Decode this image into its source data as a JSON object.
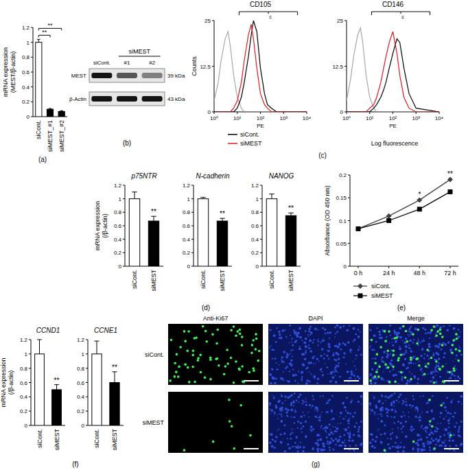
{
  "chart_data": [
    {
      "type": "bar",
      "panel": "(a)",
      "y_label": [
        "mRNA expression",
        "(MEST/β-actin)"
      ],
      "categories": [
        "siCont.",
        "siMEST_#1",
        "siMEST_#2"
      ],
      "values": [
        1,
        0.1,
        0.07
      ],
      "errors": [
        0.04,
        0.01,
        0.01
      ],
      "colors": [
        "#ffffff",
        "#000000",
        "#000000"
      ],
      "ylim": [
        0,
        1.2
      ],
      "yticks": [
        0,
        0.2,
        0.4,
        0.6,
        0.8,
        1,
        1.2
      ],
      "significance": [
        {
          "from": 0,
          "to": 1,
          "label": "**"
        },
        {
          "from": 0,
          "to": 2,
          "label": "**"
        }
      ]
    },
    {
      "type": "blot",
      "panel": "(b)",
      "group_label": "siMEST",
      "lanes": [
        "siCont.",
        "#1",
        "#2"
      ],
      "rows": [
        {
          "name": "MEST",
          "size": "39 kDa",
          "values": [
            1,
            0.7,
            0.5
          ]
        },
        {
          "name": "β-Actin",
          "size": "43 kDa",
          "values": [
            1,
            1,
            1
          ]
        }
      ]
    },
    {
      "type": "line",
      "panel": "(c)",
      "title": "CD105",
      "y_label": "Counts",
      "x_label": "PE",
      "log": "x",
      "x": [
        1,
        1.5,
        2,
        3,
        4,
        5,
        7,
        10,
        15,
        20,
        30,
        40,
        50,
        70,
        100,
        150,
        200,
        300,
        500,
        1000,
        10000
      ],
      "xlim": [
        1,
        10000
      ],
      "xticks": [
        {
          "value": 1,
          "label": "10⁰"
        },
        {
          "value": 10,
          "label": "10¹"
        },
        {
          "value": 100,
          "label": "10²"
        },
        {
          "value": 1000,
          "label": "10³"
        },
        {
          "value": 10000,
          "label": "10⁴"
        }
      ],
      "ylim": [
        0,
        25
      ],
      "yticks": [
        0,
        12.5,
        25
      ],
      "legend": "bottom-left",
      "gate": {
        "label": "c",
        "range": [
          12,
          4000
        ]
      },
      "series": [
        {
          "color": "#a6a6a6",
          "values": [
            3,
            8,
            14,
            20,
            22,
            18,
            10,
            4,
            1,
            0,
            0,
            0,
            0,
            0,
            0,
            0,
            0,
            0,
            0,
            0,
            0
          ]
        },
        {
          "name": "siCont.",
          "color": "#000000",
          "values": [
            0,
            0,
            0,
            0,
            0,
            0,
            0,
            1,
            4,
            8,
            15,
            21,
            25,
            22,
            12,
            5,
            2,
            1,
            0,
            0,
            0
          ]
        },
        {
          "name": "siMEST",
          "color": "#e8141c",
          "values": [
            0,
            0,
            0,
            0,
            0,
            0,
            1,
            3,
            8,
            14,
            21,
            24,
            20,
            12,
            5,
            2,
            1,
            0,
            0,
            0,
            0
          ]
        }
      ]
    },
    {
      "type": "line",
      "title": "CD146",
      "x_label": "PE",
      "axis_caption": "Log fluorescence",
      "log": "x",
      "x": [
        1,
        1.5,
        2,
        3,
        4,
        5,
        7,
        10,
        15,
        20,
        30,
        40,
        50,
        70,
        100,
        150,
        200,
        300,
        500,
        1000,
        10000
      ],
      "xlim": [
        1,
        10000
      ],
      "xticks": [
        {
          "value": 1,
          "label": "10⁰"
        },
        {
          "value": 10,
          "label": "10¹"
        },
        {
          "value": 100,
          "label": "10²"
        },
        {
          "value": 1000,
          "label": "10³"
        },
        {
          "value": 10000,
          "label": "10⁴"
        }
      ],
      "ylim": [
        0,
        25
      ],
      "yticks": [
        0,
        12.5,
        25
      ],
      "gate": {
        "label": "c",
        "range": [
          12,
          4000
        ]
      },
      "series": [
        {
          "color": "#a6a6a6",
          "values": [
            3,
            9,
            15,
            21,
            23,
            19,
            10,
            4,
            1,
            0,
            0,
            0,
            0,
            0,
            0,
            0,
            0,
            0,
            0,
            0,
            0
          ]
        },
        {
          "color": "#000000",
          "values": [
            0,
            0,
            0,
            0,
            0,
            0,
            0,
            0,
            1,
            2,
            4,
            6,
            8,
            12,
            16,
            20,
            19,
            12,
            5,
            1,
            0
          ]
        },
        {
          "color": "#e8141c",
          "values": [
            0,
            0,
            0,
            0,
            0,
            0,
            0,
            1,
            2,
            4,
            8,
            12,
            15,
            19,
            22,
            16,
            10,
            4,
            1,
            0,
            0
          ]
        }
      ]
    },
    {
      "type": "bar",
      "panel": "(d)",
      "title": "p75NTR",
      "y_label": [
        "mRNA expression",
        "(/β-actin)"
      ],
      "categories": [
        "siCont.",
        "siMEST"
      ],
      "values": [
        1,
        0.67
      ],
      "errors": [
        0.1,
        0.07
      ],
      "colors": [
        "#ffffff",
        "#000000"
      ],
      "ylim": [
        0,
        1.2
      ],
      "yticks": [
        0,
        0.2,
        0.4,
        0.6,
        0.8,
        1,
        1.2
      ],
      "significance": [
        {
          "at": 1,
          "label": "**"
        }
      ]
    },
    {
      "type": "bar",
      "title": "N-cadherin",
      "categories": [
        "siCont.",
        "siMEST"
      ],
      "values": [
        1,
        0.67
      ],
      "errors": [
        0.02,
        0.04
      ],
      "colors": [
        "#ffffff",
        "#000000"
      ],
      "ylim": [
        0,
        1.2
      ],
      "yticks": [
        0,
        0.2,
        0.4,
        0.6,
        0.8,
        1,
        1.2
      ],
      "significance": [
        {
          "at": 1,
          "label": "**"
        }
      ]
    },
    {
      "type": "bar",
      "title": "NANOG",
      "categories": [
        "siCont.",
        "siMEST"
      ],
      "values": [
        1,
        0.75
      ],
      "errors": [
        0.07,
        0.04
      ],
      "colors": [
        "#ffffff",
        "#000000"
      ],
      "ylim": [
        0,
        1.2
      ],
      "yticks": [
        0,
        0.2,
        0.4,
        0.6,
        0.8,
        1,
        1.2
      ],
      "significance": [
        {
          "at": 1,
          "label": "**"
        }
      ]
    },
    {
      "type": "line",
      "panel": "(e)",
      "y_label": "Absorbance (OD 450 nm)",
      "categories": [
        "0 h",
        "24 h",
        "48 h",
        "72 h"
      ],
      "ylim": [
        0,
        0.2
      ],
      "yticks": [
        0,
        0.05,
        0.1,
        0.15,
        0.2
      ],
      "legend": "bottom-left",
      "series": [
        {
          "name": "siCont.",
          "color": "#404040",
          "marker": "diamond",
          "values": [
            0.082,
            0.11,
            0.145,
            0.19
          ]
        },
        {
          "name": "siMEST",
          "color": "#000000",
          "marker": "square",
          "values": [
            0.082,
            0.1,
            0.125,
            0.163
          ]
        }
      ],
      "significance": [
        {
          "at": 2,
          "label": "*"
        },
        {
          "at": 3,
          "label": "**"
        }
      ]
    },
    {
      "type": "bar",
      "panel": "(f)",
      "title": "CCND1",
      "y_label": [
        "mRNA expression",
        "(/β-actin)"
      ],
      "categories": [
        "siCont.",
        "siMEST"
      ],
      "values": [
        1,
        0.5
      ],
      "errors": [
        0.2,
        0.07
      ],
      "colors": [
        "#ffffff",
        "#000000"
      ],
      "ylim": [
        0,
        1.2
      ],
      "yticks": [
        0,
        0.2,
        0.4,
        0.6,
        0.8,
        1,
        1.2
      ],
      "significance": [
        {
          "at": 1,
          "label": "**"
        }
      ]
    },
    {
      "type": "bar",
      "title": "CCNE1",
      "categories": [
        "siCont.",
        "siMEST"
      ],
      "values": [
        1,
        0.6
      ],
      "errors": [
        0.18,
        0.15
      ],
      "colors": [
        "#ffffff",
        "#000000"
      ],
      "ylim": [
        0,
        1.2
      ],
      "yticks": [
        0,
        0.2,
        0.4,
        0.6,
        0.8,
        1,
        1.2
      ],
      "significance": [
        {
          "at": 1,
          "label": "**"
        }
      ]
    },
    {
      "type": "image_grid",
      "panel": "(g)",
      "columns": [
        "Anti-Ki67",
        "DAPI",
        "Merge"
      ],
      "rows": [
        "siCont.",
        "siMEST"
      ],
      "positive_cells": [
        70,
        8
      ]
    }
  ]
}
